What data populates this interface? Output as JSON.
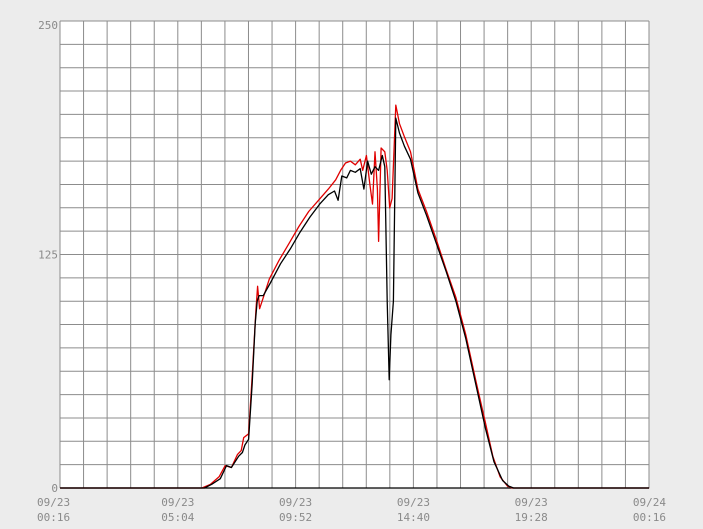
{
  "chart_data": {
    "type": "line",
    "title": "",
    "xlabel": "",
    "ylabel": "",
    "x_range_hours": [
      0.2667,
      24.2667
    ],
    "ylim": [
      0,
      250
    ],
    "y_ticks": [
      {
        "value": 0,
        "label": "0"
      },
      {
        "value": 125,
        "label": "125"
      },
      {
        "value": 250,
        "label": "250"
      }
    ],
    "x_ticks": [
      {
        "hour": 0.2667,
        "date": "09/23",
        "time": "00:16"
      },
      {
        "hour": 5.0667,
        "date": "09/23",
        "time": "05:04"
      },
      {
        "hour": 9.8667,
        "date": "09/23",
        "time": "09:52"
      },
      {
        "hour": 14.6667,
        "date": "09/23",
        "time": "14:40"
      },
      {
        "hour": 19.4667,
        "date": "09/23",
        "time": "19:28"
      },
      {
        "hour": 24.2667,
        "date": "09/24",
        "time": "00:16"
      }
    ],
    "grid": true,
    "series": [
      {
        "color": "#e00000",
        "points": [
          [
            0.27,
            0
          ],
          [
            6.05,
            0
          ],
          [
            6.4,
            2
          ],
          [
            6.75,
            6
          ],
          [
            7.0,
            12
          ],
          [
            7.25,
            11
          ],
          [
            7.5,
            18
          ],
          [
            7.65,
            20
          ],
          [
            7.75,
            27
          ],
          [
            7.95,
            29
          ],
          [
            8.1,
            60
          ],
          [
            8.25,
            95
          ],
          [
            8.32,
            108
          ],
          [
            8.4,
            96
          ],
          [
            8.5,
            100
          ],
          [
            8.8,
            112
          ],
          [
            9.2,
            122
          ],
          [
            9.6,
            131
          ],
          [
            10.0,
            140
          ],
          [
            10.4,
            148
          ],
          [
            10.8,
            154
          ],
          [
            11.2,
            160
          ],
          [
            11.5,
            165
          ],
          [
            11.7,
            170
          ],
          [
            11.9,
            174
          ],
          [
            12.1,
            175
          ],
          [
            12.3,
            173
          ],
          [
            12.5,
            176
          ],
          [
            12.6,
            170
          ],
          [
            12.75,
            178
          ],
          [
            12.9,
            162
          ],
          [
            13.0,
            152
          ],
          [
            13.1,
            180
          ],
          [
            13.2,
            160
          ],
          [
            13.25,
            132
          ],
          [
            13.35,
            182
          ],
          [
            13.5,
            180
          ],
          [
            13.6,
            170
          ],
          [
            13.7,
            150
          ],
          [
            13.8,
            155
          ],
          [
            13.95,
            205
          ],
          [
            14.1,
            195
          ],
          [
            14.3,
            188
          ],
          [
            14.55,
            180
          ],
          [
            14.85,
            160
          ],
          [
            15.2,
            148
          ],
          [
            15.6,
            133
          ],
          [
            16.0,
            117
          ],
          [
            16.4,
            102
          ],
          [
            16.8,
            82
          ],
          [
            17.2,
            58
          ],
          [
            17.6,
            35
          ],
          [
            17.9,
            17
          ],
          [
            18.2,
            6
          ],
          [
            18.5,
            1
          ],
          [
            18.7,
            0
          ],
          [
            24.27,
            0
          ]
        ]
      },
      {
        "color": "#000000",
        "points": [
          [
            0.27,
            0
          ],
          [
            6.15,
            0
          ],
          [
            6.45,
            2
          ],
          [
            6.8,
            5
          ],
          [
            7.05,
            12
          ],
          [
            7.25,
            11
          ],
          [
            7.55,
            17
          ],
          [
            7.7,
            19
          ],
          [
            7.8,
            23
          ],
          [
            7.95,
            26
          ],
          [
            8.1,
            56
          ],
          [
            8.22,
            88
          ],
          [
            8.3,
            100
          ],
          [
            8.38,
            103
          ],
          [
            8.55,
            103
          ],
          [
            8.85,
            110
          ],
          [
            9.25,
            120
          ],
          [
            9.65,
            128
          ],
          [
            10.05,
            137
          ],
          [
            10.45,
            145
          ],
          [
            10.85,
            152
          ],
          [
            11.2,
            157
          ],
          [
            11.45,
            159
          ],
          [
            11.6,
            154
          ],
          [
            11.75,
            167
          ],
          [
            11.95,
            166
          ],
          [
            12.1,
            170
          ],
          [
            12.3,
            169
          ],
          [
            12.5,
            171
          ],
          [
            12.65,
            160
          ],
          [
            12.8,
            175
          ],
          [
            12.95,
            168
          ],
          [
            13.1,
            172
          ],
          [
            13.25,
            170
          ],
          [
            13.4,
            178
          ],
          [
            13.5,
            172
          ],
          [
            13.6,
            100
          ],
          [
            13.68,
            58
          ],
          [
            13.75,
            82
          ],
          [
            13.85,
            100
          ],
          [
            13.95,
            198
          ],
          [
            14.1,
            190
          ],
          [
            14.3,
            183
          ],
          [
            14.55,
            176
          ],
          [
            14.85,
            158
          ],
          [
            15.2,
            146
          ],
          [
            15.6,
            131
          ],
          [
            16.0,
            116
          ],
          [
            16.4,
            100
          ],
          [
            16.8,
            80
          ],
          [
            17.2,
            56
          ],
          [
            17.6,
            32
          ],
          [
            17.95,
            14
          ],
          [
            18.3,
            4
          ],
          [
            18.55,
            1
          ],
          [
            18.75,
            0
          ],
          [
            24.27,
            0
          ]
        ]
      }
    ]
  }
}
